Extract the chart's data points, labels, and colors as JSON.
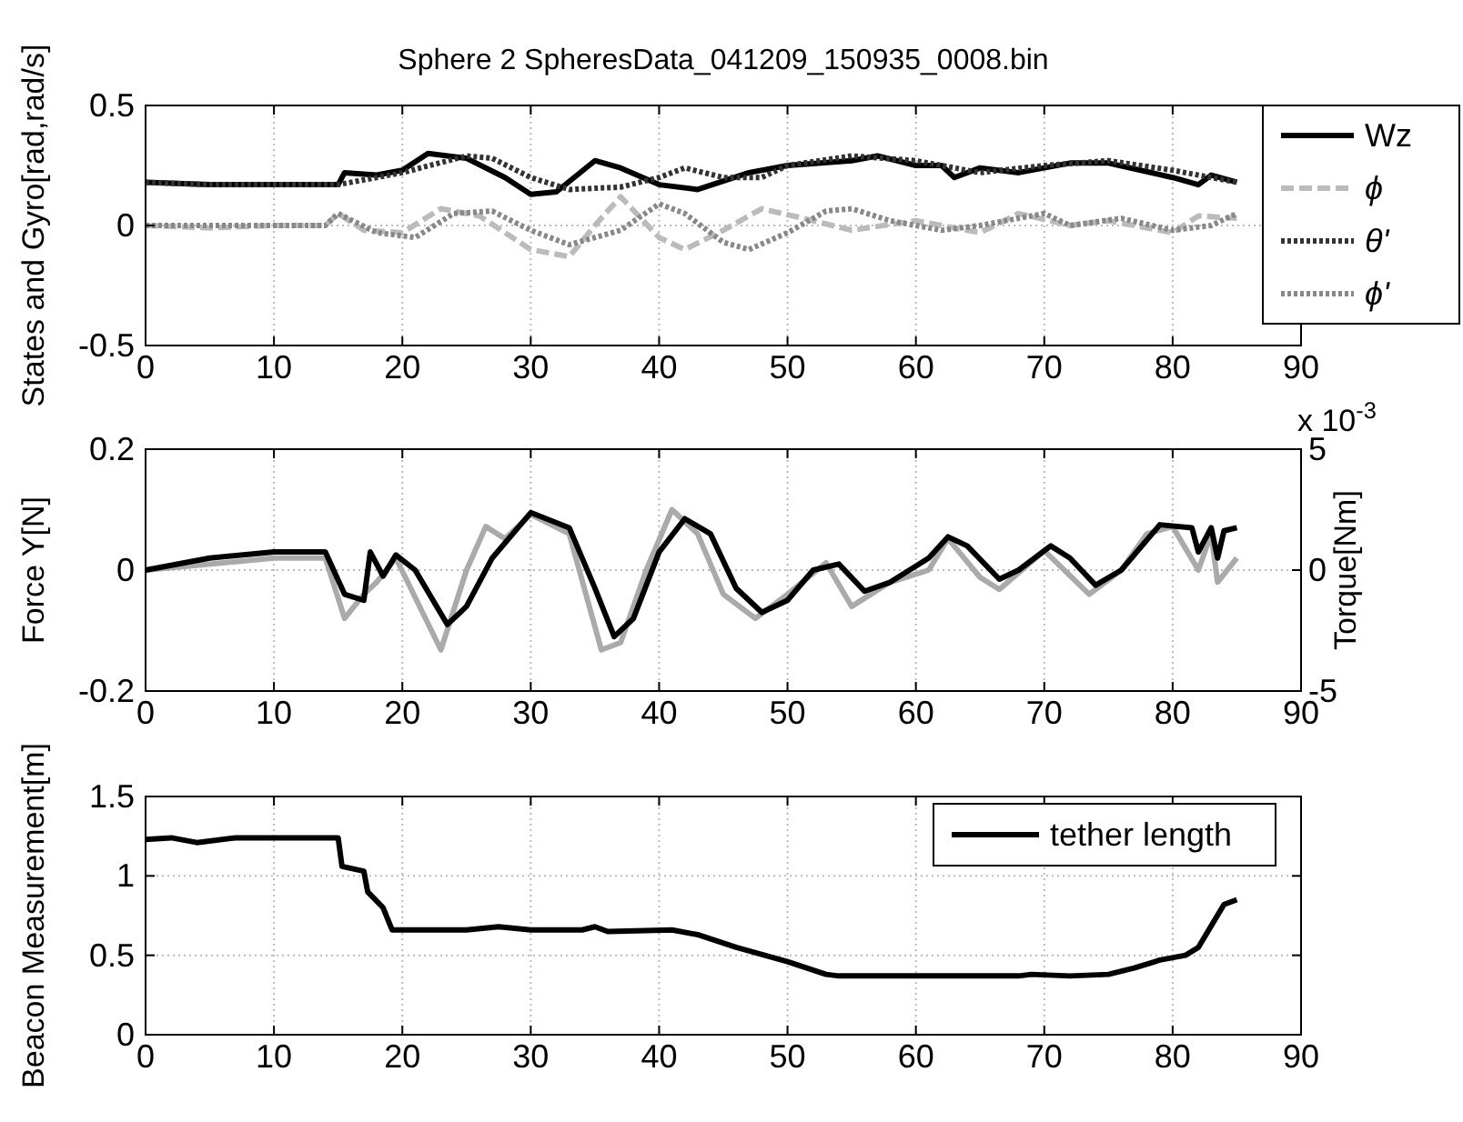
{
  "chart_data": [
    {
      "type": "line",
      "title": "Sphere 2 SpheresData_041209_150935_0008.bin",
      "ylabel": "States and Gyro[rad,rad/s]",
      "xlim": [
        0,
        90
      ],
      "xticks": [
        0,
        10,
        20,
        30,
        40,
        50,
        60,
        70,
        80,
        90
      ],
      "ylim": [
        -0.5,
        0.5
      ],
      "yticks": [
        -0.5,
        0,
        0.5
      ],
      "grid": true,
      "legend": "top right",
      "series": [
        {
          "name": "Wz",
          "color": "#000000",
          "line_style": "solid",
          "x": [
            0,
            5,
            10,
            15,
            15.5,
            18,
            20,
            22,
            25,
            28,
            30,
            32,
            35,
            37,
            40,
            43,
            47,
            50,
            55,
            57,
            60,
            62,
            63,
            65,
            68,
            72,
            75,
            80,
            82,
            83,
            85
          ],
          "values": [
            0.18,
            0.17,
            0.17,
            0.17,
            0.22,
            0.21,
            0.23,
            0.3,
            0.28,
            0.2,
            0.13,
            0.14,
            0.27,
            0.24,
            0.17,
            0.15,
            0.22,
            0.25,
            0.27,
            0.29,
            0.25,
            0.25,
            0.2,
            0.24,
            0.22,
            0.26,
            0.26,
            0.2,
            0.17,
            0.21,
            0.18
          ]
        },
        {
          "name": "ϕ",
          "color": "#bbbbbb",
          "line_style": "dashed",
          "x": [
            0,
            5,
            10,
            14,
            15,
            17,
            20,
            23,
            26,
            30,
            33,
            35,
            37,
            40,
            42,
            45,
            48,
            52,
            55,
            60,
            65,
            68,
            72,
            75,
            80,
            82,
            85
          ],
          "values": [
            0,
            -0.01,
            0,
            0,
            0.05,
            -0.02,
            -0.03,
            0.07,
            0.04,
            -0.1,
            -0.13,
            0,
            0.12,
            -0.05,
            -0.1,
            -0.02,
            0.07,
            0.02,
            -0.02,
            0.02,
            -0.03,
            0.05,
            0,
            0.02,
            -0.03,
            0.04,
            0.03
          ]
        },
        {
          "name": "θ'",
          "color": "#333333",
          "line_style": "dotted",
          "x": [
            0,
            5,
            10,
            15,
            18,
            20,
            25,
            27,
            30,
            33,
            37,
            40,
            42,
            45,
            48,
            50,
            55,
            60,
            65,
            70,
            75,
            80,
            85
          ],
          "values": [
            0.18,
            0.17,
            0.17,
            0.17,
            0.2,
            0.22,
            0.29,
            0.28,
            0.2,
            0.15,
            0.16,
            0.2,
            0.24,
            0.2,
            0.2,
            0.25,
            0.29,
            0.27,
            0.22,
            0.25,
            0.27,
            0.23,
            0.18
          ]
        },
        {
          "name": "ϕ'",
          "color": "#888888",
          "line_style": "dotted",
          "x": [
            0,
            5,
            10,
            14,
            15,
            18,
            21,
            24,
            27,
            30,
            33,
            37,
            40,
            42,
            45,
            47,
            50,
            53,
            55,
            58,
            62,
            65,
            70,
            72,
            76,
            80,
            83,
            85
          ],
          "values": [
            0,
            0,
            0,
            0,
            0.05,
            -0.03,
            -0.05,
            0.05,
            0.06,
            -0.02,
            -0.08,
            -0.02,
            0.09,
            0.05,
            -0.07,
            -0.1,
            -0.03,
            0.06,
            0.07,
            0.02,
            -0.02,
            0,
            0.05,
            0,
            0.03,
            -0.02,
            0,
            0.05
          ]
        }
      ]
    },
    {
      "type": "line",
      "ylabel": "Force Y[N]",
      "y2label": "Torque[Nm]",
      "xlim": [
        0,
        90
      ],
      "xticks": [
        0,
        10,
        20,
        30,
        40,
        50,
        60,
        70,
        80,
        90
      ],
      "ylim": [
        -0.2,
        0.2
      ],
      "yticks": [
        -0.2,
        0,
        0.2
      ],
      "y2lim": [
        -5,
        5
      ],
      "y2ticks": [
        -5,
        0,
        5
      ],
      "grid": true,
      "annotations": [
        "x 10$^{-3}$"
      ],
      "series": [
        {
          "color": "#aaaaaa",
          "axis": "y2",
          "line_style": "solid",
          "x": [
            0,
            10,
            14,
            15.5,
            17,
            18,
            19.5,
            23,
            25,
            26.5,
            28,
            30,
            33,
            35.5,
            37,
            39,
            41,
            43,
            45,
            47.5,
            50,
            53,
            55,
            58,
            61,
            62.5,
            65,
            66.5,
            70,
            73.5,
            76,
            78,
            80,
            82,
            83,
            83.5,
            85
          ],
          "values": [
            0,
            0.5,
            0.5,
            -2,
            -1,
            -0.5,
            0.5,
            -3.3,
            0,
            1.8,
            1.3,
            2.3,
            1.5,
            -3.3,
            -3,
            0,
            2.5,
            1.5,
            -1,
            -2,
            -1,
            0.3,
            -1.5,
            -0.5,
            0,
            1.3,
            -0.3,
            -0.8,
            0.8,
            -1,
            0,
            1.5,
            1.8,
            0,
            1.5,
            -0.5,
            0.5
          ]
        },
        {
          "color": "#000000",
          "axis": "y",
          "line_style": "solid",
          "x": [
            0,
            5,
            10,
            14,
            15.5,
            17,
            17.5,
            18.5,
            19.5,
            21,
            23.5,
            25,
            27,
            30,
            33,
            35,
            36.5,
            38,
            40,
            42,
            44,
            46,
            48,
            50,
            52,
            54,
            56,
            58,
            61,
            62.5,
            64,
            66.5,
            68,
            70.5,
            72,
            74,
            76,
            79,
            81.5,
            82,
            83,
            83.5,
            84,
            85
          ],
          "values": [
            0,
            0.02,
            0.03,
            0.03,
            -0.04,
            -0.05,
            0.03,
            -0.01,
            0.025,
            0,
            -0.09,
            -0.06,
            0.02,
            0.095,
            0.07,
            -0.03,
            -0.11,
            -0.08,
            0.03,
            0.085,
            0.06,
            -0.03,
            -0.07,
            -0.05,
            0,
            0.01,
            -0.035,
            -0.02,
            0.02,
            0.055,
            0.04,
            -0.015,
            0,
            0.04,
            0.02,
            -0.025,
            0,
            0.075,
            0.07,
            0.03,
            0.07,
            0.02,
            0.065,
            0.07
          ]
        }
      ]
    },
    {
      "type": "line",
      "ylabel": "Beacon Measurement[m]",
      "xlim": [
        0,
        90
      ],
      "xticks": [
        0,
        10,
        20,
        30,
        40,
        50,
        60,
        70,
        80,
        90
      ],
      "ylim": [
        0,
        1.5
      ],
      "yticks": [
        0,
        0.5,
        1,
        1.5
      ],
      "grid": true,
      "legend": "top right",
      "series": [
        {
          "name": "tether length",
          "color": "#000000",
          "line_style": "solid",
          "x": [
            0,
            2,
            4,
            7,
            15,
            15.3,
            17,
            17.3,
            18.5,
            19.2,
            25,
            27.5,
            30,
            34,
            35,
            36,
            41,
            43,
            46,
            50,
            53,
            54,
            68,
            69,
            72,
            75,
            77,
            79,
            81,
            82,
            84,
            85
          ],
          "values": [
            1.23,
            1.24,
            1.21,
            1.24,
            1.24,
            1.06,
            1.03,
            0.9,
            0.8,
            0.66,
            0.66,
            0.68,
            0.66,
            0.66,
            0.68,
            0.65,
            0.66,
            0.63,
            0.55,
            0.46,
            0.38,
            0.37,
            0.37,
            0.38,
            0.37,
            0.38,
            0.42,
            0.47,
            0.5,
            0.55,
            0.82,
            0.85
          ]
        }
      ]
    }
  ]
}
